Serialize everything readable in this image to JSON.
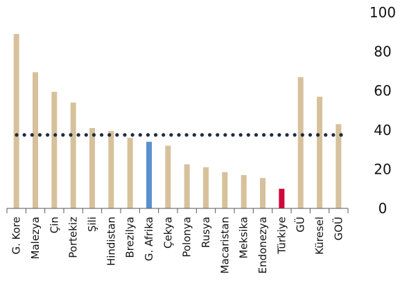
{
  "chart_data": {
    "type": "bar",
    "title": "",
    "xlabel": "",
    "ylabel": "",
    "ylim": [
      0,
      100
    ],
    "yticks": [
      0,
      20,
      40,
      60,
      80,
      100
    ],
    "y_axis_position": "right",
    "grid": false,
    "categories": [
      "G. Kore",
      "Malezya",
      "Çin",
      "Portekiz",
      "Şili",
      "Hindistan",
      "Brezilya",
      "G. Afrika",
      "Çekya",
      "Polonya",
      "Rusya",
      "Macaristan",
      "Meksika",
      "Endonezya",
      "Türkiye",
      "GÜ",
      "Küresel",
      "GOÜ"
    ],
    "values": [
      89,
      69.5,
      59.5,
      54,
      41,
      39.5,
      36,
      34,
      32,
      22.5,
      21,
      18.5,
      17,
      15.5,
      10,
      67,
      57,
      43
    ],
    "reference_line": {
      "value": 37.5,
      "style": "dotted"
    },
    "colors": {
      "default_bar": "#d7c19c",
      "highlight_south_africa": "#5b8fd0",
      "highlight_turkey": "#d1063b",
      "reference_line": "#1f2d3d",
      "axis": "#555555",
      "text": "#111111"
    },
    "highlight_indices": {
      "7": "highlight_south_africa",
      "14": "highlight_turkey"
    }
  }
}
